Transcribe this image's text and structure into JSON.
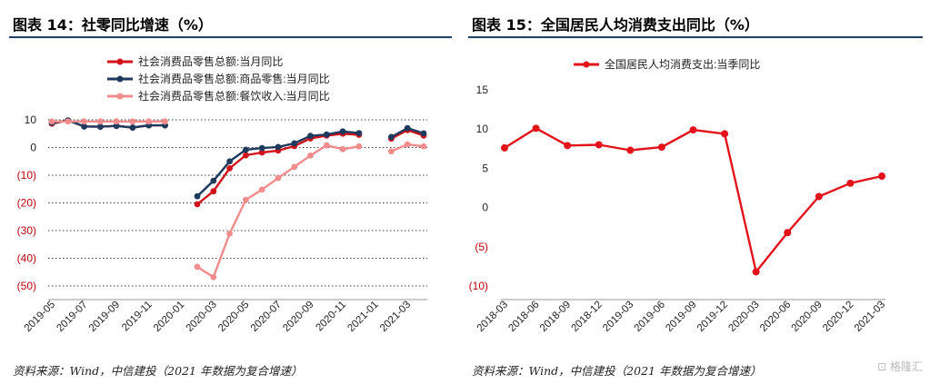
{
  "figures": [
    {
      "title": "图表 14：社零同比增速（%）",
      "source": "资料来源：Wind，中信建投（2021 年数据为复合增速）"
    },
    {
      "title": "图表 15：全国居民人均消费支出同比（%）",
      "source": "资料来源：Wind，中信建投（2021 年数据为复合增速）"
    }
  ],
  "watermark": "格隆汇",
  "chart_data": [
    {
      "type": "line",
      "title": "",
      "xlabel": "",
      "ylabel": "",
      "ylim": [
        -50,
        10
      ],
      "yticks": [
        10,
        0,
        -10,
        -20,
        -30,
        -40,
        -50
      ],
      "ytick_labels": [
        "10",
        "0",
        "(10)",
        "(20)",
        "(30)",
        "(40)",
        "(50)"
      ],
      "grid": true,
      "legend_position": "top",
      "x": [
        "2019-05",
        "2019-06",
        "2019-07",
        "2019-08",
        "2019-09",
        "2019-10",
        "2019-11",
        "2019-12",
        "2020-01",
        "2020-02",
        "2020-03",
        "2020-04",
        "2020-05",
        "2020-06",
        "2020-07",
        "2020-08",
        "2020-09",
        "2020-10",
        "2020-11",
        "2020-12",
        "2021-01",
        "2021-02",
        "2021-03",
        "2021-04"
      ],
      "xtick_labels": [
        "2019-05",
        "2019-07",
        "2019-09",
        "2019-11",
        "2020-01",
        "2020-03",
        "2020-05",
        "2020-07",
        "2020-09",
        "2020-11",
        "2021-01",
        "2021-03"
      ],
      "series": [
        {
          "name": "社会消费品零售总额:当月同比",
          "color": "#d0121b",
          "values": [
            8.6,
            9.8,
            7.6,
            7.5,
            7.8,
            7.2,
            8.0,
            8.0,
            null,
            -20.5,
            -15.8,
            -7.5,
            -2.8,
            -1.8,
            -1.1,
            0.5,
            3.3,
            4.3,
            5.0,
            4.6,
            null,
            3.2,
            6.3,
            4.3
          ]
        },
        {
          "name": "社会消费品零售总额:商品零售:当月同比",
          "color": "#1e3a5f",
          "values": [
            8.9,
            9.8,
            7.6,
            7.5,
            7.8,
            7.2,
            8.0,
            8.0,
            null,
            -17.6,
            -12.0,
            -5.0,
            -0.8,
            -0.2,
            0.2,
            1.5,
            4.2,
            4.7,
            5.8,
            5.2,
            null,
            3.8,
            7.0,
            5.1
          ]
        },
        {
          "name": "社会消费品零售总额:餐饮收入:当月同比",
          "color": "#f08c8c",
          "values": [
            9.4,
            9.4,
            9.4,
            9.4,
            9.4,
            9.4,
            9.4,
            9.4,
            null,
            -43.1,
            -46.8,
            -31.1,
            -18.9,
            -15.2,
            -11.0,
            -7.0,
            -2.9,
            0.8,
            -0.6,
            0.4,
            null,
            -1.4,
            1.1,
            0.4
          ]
        }
      ]
    },
    {
      "type": "line",
      "title": "",
      "xlabel": "",
      "ylabel": "",
      "ylim": [
        -10,
        15
      ],
      "yticks": [
        15,
        10,
        5,
        0,
        -5,
        -10
      ],
      "ytick_labels": [
        "15",
        "10",
        "5",
        "0",
        "(5)",
        "(10)"
      ],
      "grid": false,
      "legend_position": "top",
      "x": [
        "2018-03",
        "2018-06",
        "2018-09",
        "2018-12",
        "2019-03",
        "2019-06",
        "2019-09",
        "2019-12",
        "2020-03",
        "2020-06",
        "2020-09",
        "2020-12",
        "2021-03"
      ],
      "xtick_labels": [
        "2018-03",
        "2018-06",
        "2018-09",
        "2018-12",
        "2019-03",
        "2019-06",
        "2019-09",
        "2019-12",
        "2020-03",
        "2020-06",
        "2020-09",
        "2020-12",
        "2021-03"
      ],
      "series": [
        {
          "name": "全国居民人均消费支出:当季同比",
          "color": "#e3121b",
          "values": [
            7.6,
            10.1,
            7.9,
            8.0,
            7.3,
            7.7,
            9.9,
            9.4,
            -8.2,
            -3.2,
            1.4,
            3.1,
            4.0
          ]
        }
      ]
    }
  ]
}
